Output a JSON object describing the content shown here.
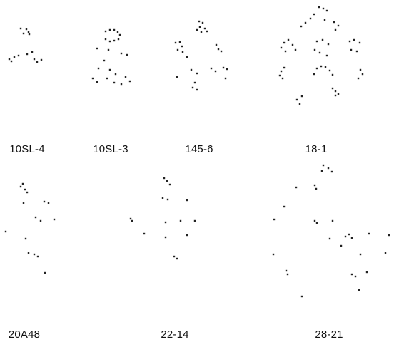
{
  "panels": [
    {
      "id": "10SL-4",
      "label": "10SL-4"
    },
    {
      "id": "10SL-3",
      "label": "10SL-3"
    },
    {
      "id": "145-6",
      "label": "145-6"
    },
    {
      "id": "18-1",
      "label": "18-1"
    },
    {
      "id": "20A48",
      "label": "20A48"
    },
    {
      "id": "22-14",
      "label": "22-14"
    },
    {
      "id": "28-21",
      "label": "28-21"
    }
  ],
  "dot_color": "#222222"
}
